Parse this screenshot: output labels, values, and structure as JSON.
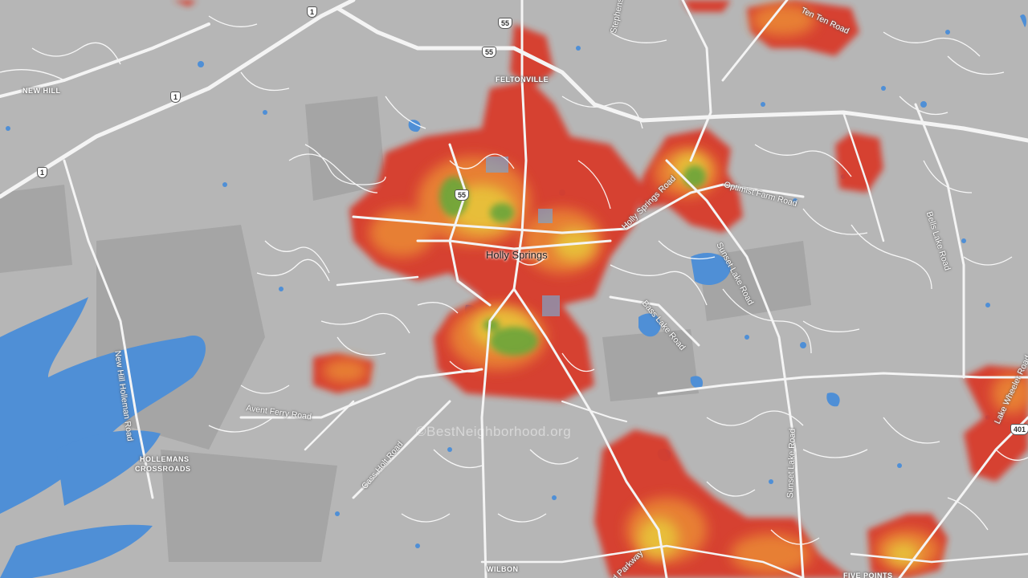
{
  "map": {
    "city_label": "Holly Springs",
    "watermark": "©BestNeighborhood.org",
    "place_labels": {
      "new_hill": "NEW HILL",
      "feltonville": "FELTONVILLE",
      "hollemans": "HOLLEMANS",
      "crossroads": "CROSSROADS",
      "wilbon": "WILBON",
      "five_points": "FIVE POINTS"
    },
    "road_labels": {
      "ten_ten": "Ten Ten Road",
      "stephenson": "Stephenson Road",
      "optimist_farm": "Optimist Farm Road",
      "holly_springs_rd": "Holly Springs Road",
      "sunset_lake_n": "Sunset Lake Road",
      "sunset_lake_s": "Sunset Lake Road",
      "bass_lake": "Bass Lake Road",
      "bells_lake": "Bells Lake Road",
      "lake_wheeler": "Lake Wheeler Road",
      "new_hill_holleman": "New Hill Holleman Road",
      "avent_ferry": "Avent Ferry Road",
      "cass_holt": "Cass Holt Road",
      "parkway": "d Parkway"
    },
    "shields": {
      "us1_a": "1",
      "us1_b": "1",
      "us1_c": "1",
      "nc55_a": "55",
      "nc55_b": "55",
      "nc55_c": "55",
      "i401": "401"
    },
    "heatmap_scale": {
      "high": "#6fa63a",
      "mid": "#e8c53a",
      "low": "#d83a2a"
    },
    "colors": {
      "background": "#b6b6b6",
      "water": "#4f8fd6",
      "roads": "#ffffff",
      "parks": "#9a9a9a"
    }
  }
}
